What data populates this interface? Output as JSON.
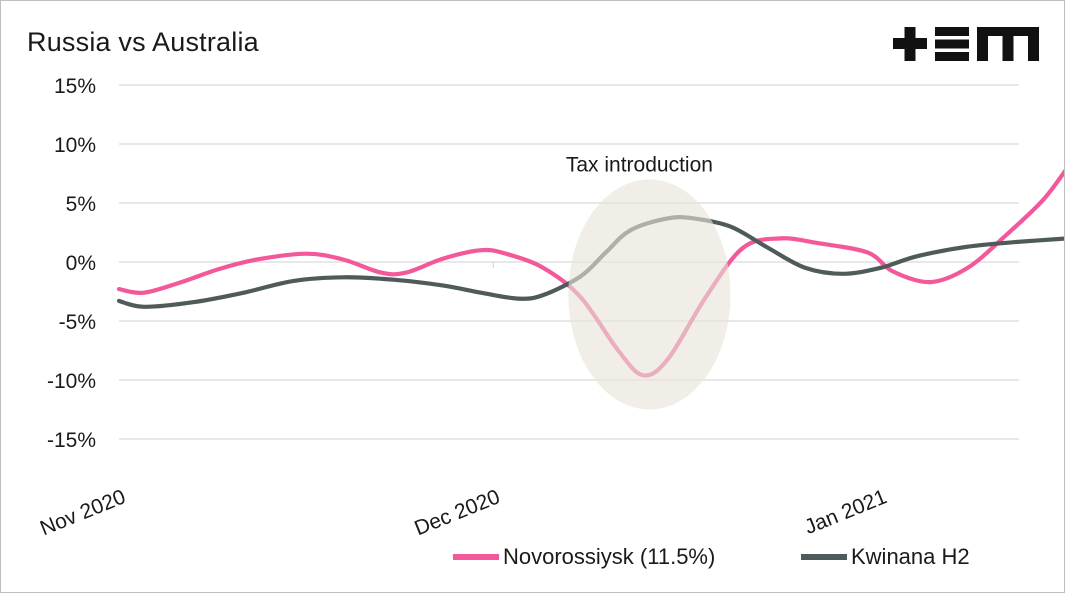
{
  "header": {
    "title": "Russia vs Australia",
    "logo_text": "+EM"
  },
  "colors": {
    "series_1": "#f2589a",
    "series_2": "#4f5b5b",
    "highlight": "#e6e4d9",
    "grid": "#d9d9d9",
    "text": "#1a1a1a"
  },
  "chart_data": {
    "type": "line",
    "title": "Russia vs Australia",
    "xlabel": "",
    "ylabel": "",
    "ylim": [
      -15,
      15
    ],
    "y_ticks": [
      "15%",
      "10%",
      "5%",
      "0%",
      "-5%",
      "-10%",
      "-15%"
    ],
    "y_tick_values": [
      15,
      10,
      5,
      0,
      -5,
      -10,
      -15
    ],
    "x_tick_labels": [
      "Nov 2020",
      "Dec 2020",
      "Jan 2021"
    ],
    "x_tick_dates": [
      "2020-11-01",
      "2020-12-01",
      "2021-01-01"
    ],
    "grid": "horizontal",
    "legend_position": "bottom",
    "annotations": [
      {
        "text": "Tax introduction",
        "x_range": [
          "2020-12-07",
          "2020-12-20"
        ],
        "y_range": [
          -12.5,
          7
        ]
      }
    ],
    "series": [
      {
        "name": "Novorossiysk (11.5%)",
        "color": "#f2589a",
        "points": [
          [
            "2020-11-01",
            -2.3
          ],
          [
            "2020-11-03",
            -2.6
          ],
          [
            "2020-11-06",
            -1.7
          ],
          [
            "2020-11-09",
            -0.6
          ],
          [
            "2020-11-12",
            0.2
          ],
          [
            "2020-11-16",
            0.7
          ],
          [
            "2020-11-19",
            0.2
          ],
          [
            "2020-11-22",
            -0.9
          ],
          [
            "2020-11-24",
            -0.9
          ],
          [
            "2020-11-27",
            0.3
          ],
          [
            "2020-11-30",
            1.0
          ],
          [
            "2020-12-02",
            0.7
          ],
          [
            "2020-12-05",
            -0.5
          ],
          [
            "2020-12-08",
            -3.0
          ],
          [
            "2020-12-11",
            -7.5
          ],
          [
            "2020-12-13",
            -9.6
          ],
          [
            "2020-12-15",
            -8.2
          ],
          [
            "2020-12-18",
            -3.0
          ],
          [
            "2020-12-21",
            1.2
          ],
          [
            "2020-12-24",
            2.0
          ],
          [
            "2020-12-27",
            1.6
          ],
          [
            "2020-12-31",
            0.8
          ],
          [
            "2021-01-02",
            -0.8
          ],
          [
            "2021-01-05",
            -1.7
          ],
          [
            "2021-01-08",
            -0.5
          ],
          [
            "2021-01-11",
            2.2
          ],
          [
            "2021-01-14",
            5.2
          ],
          [
            "2021-01-16",
            8.0
          ]
        ]
      },
      {
        "name": "Kwinana H2",
        "color": "#4f5b5b",
        "points": [
          [
            "2020-11-01",
            -3.3
          ],
          [
            "2020-11-03",
            -3.8
          ],
          [
            "2020-11-07",
            -3.4
          ],
          [
            "2020-11-11",
            -2.6
          ],
          [
            "2020-11-15",
            -1.6
          ],
          [
            "2020-11-19",
            -1.3
          ],
          [
            "2020-11-23",
            -1.5
          ],
          [
            "2020-11-27",
            -2.0
          ],
          [
            "2020-11-30",
            -2.6
          ],
          [
            "2020-12-03",
            -3.1
          ],
          [
            "2020-12-05",
            -2.8
          ],
          [
            "2020-12-08",
            -1.2
          ],
          [
            "2020-12-10",
            0.8
          ],
          [
            "2020-12-12",
            2.7
          ],
          [
            "2020-12-15",
            3.7
          ],
          [
            "2020-12-17",
            3.7
          ],
          [
            "2020-12-20",
            3.0
          ],
          [
            "2020-12-23",
            1.2
          ],
          [
            "2020-12-26",
            -0.5
          ],
          [
            "2020-12-29",
            -1.0
          ],
          [
            "2021-01-01",
            -0.5
          ],
          [
            "2021-01-04",
            0.5
          ],
          [
            "2021-01-08",
            1.3
          ],
          [
            "2021-01-12",
            1.7
          ],
          [
            "2021-01-16",
            2.0
          ]
        ]
      }
    ]
  }
}
